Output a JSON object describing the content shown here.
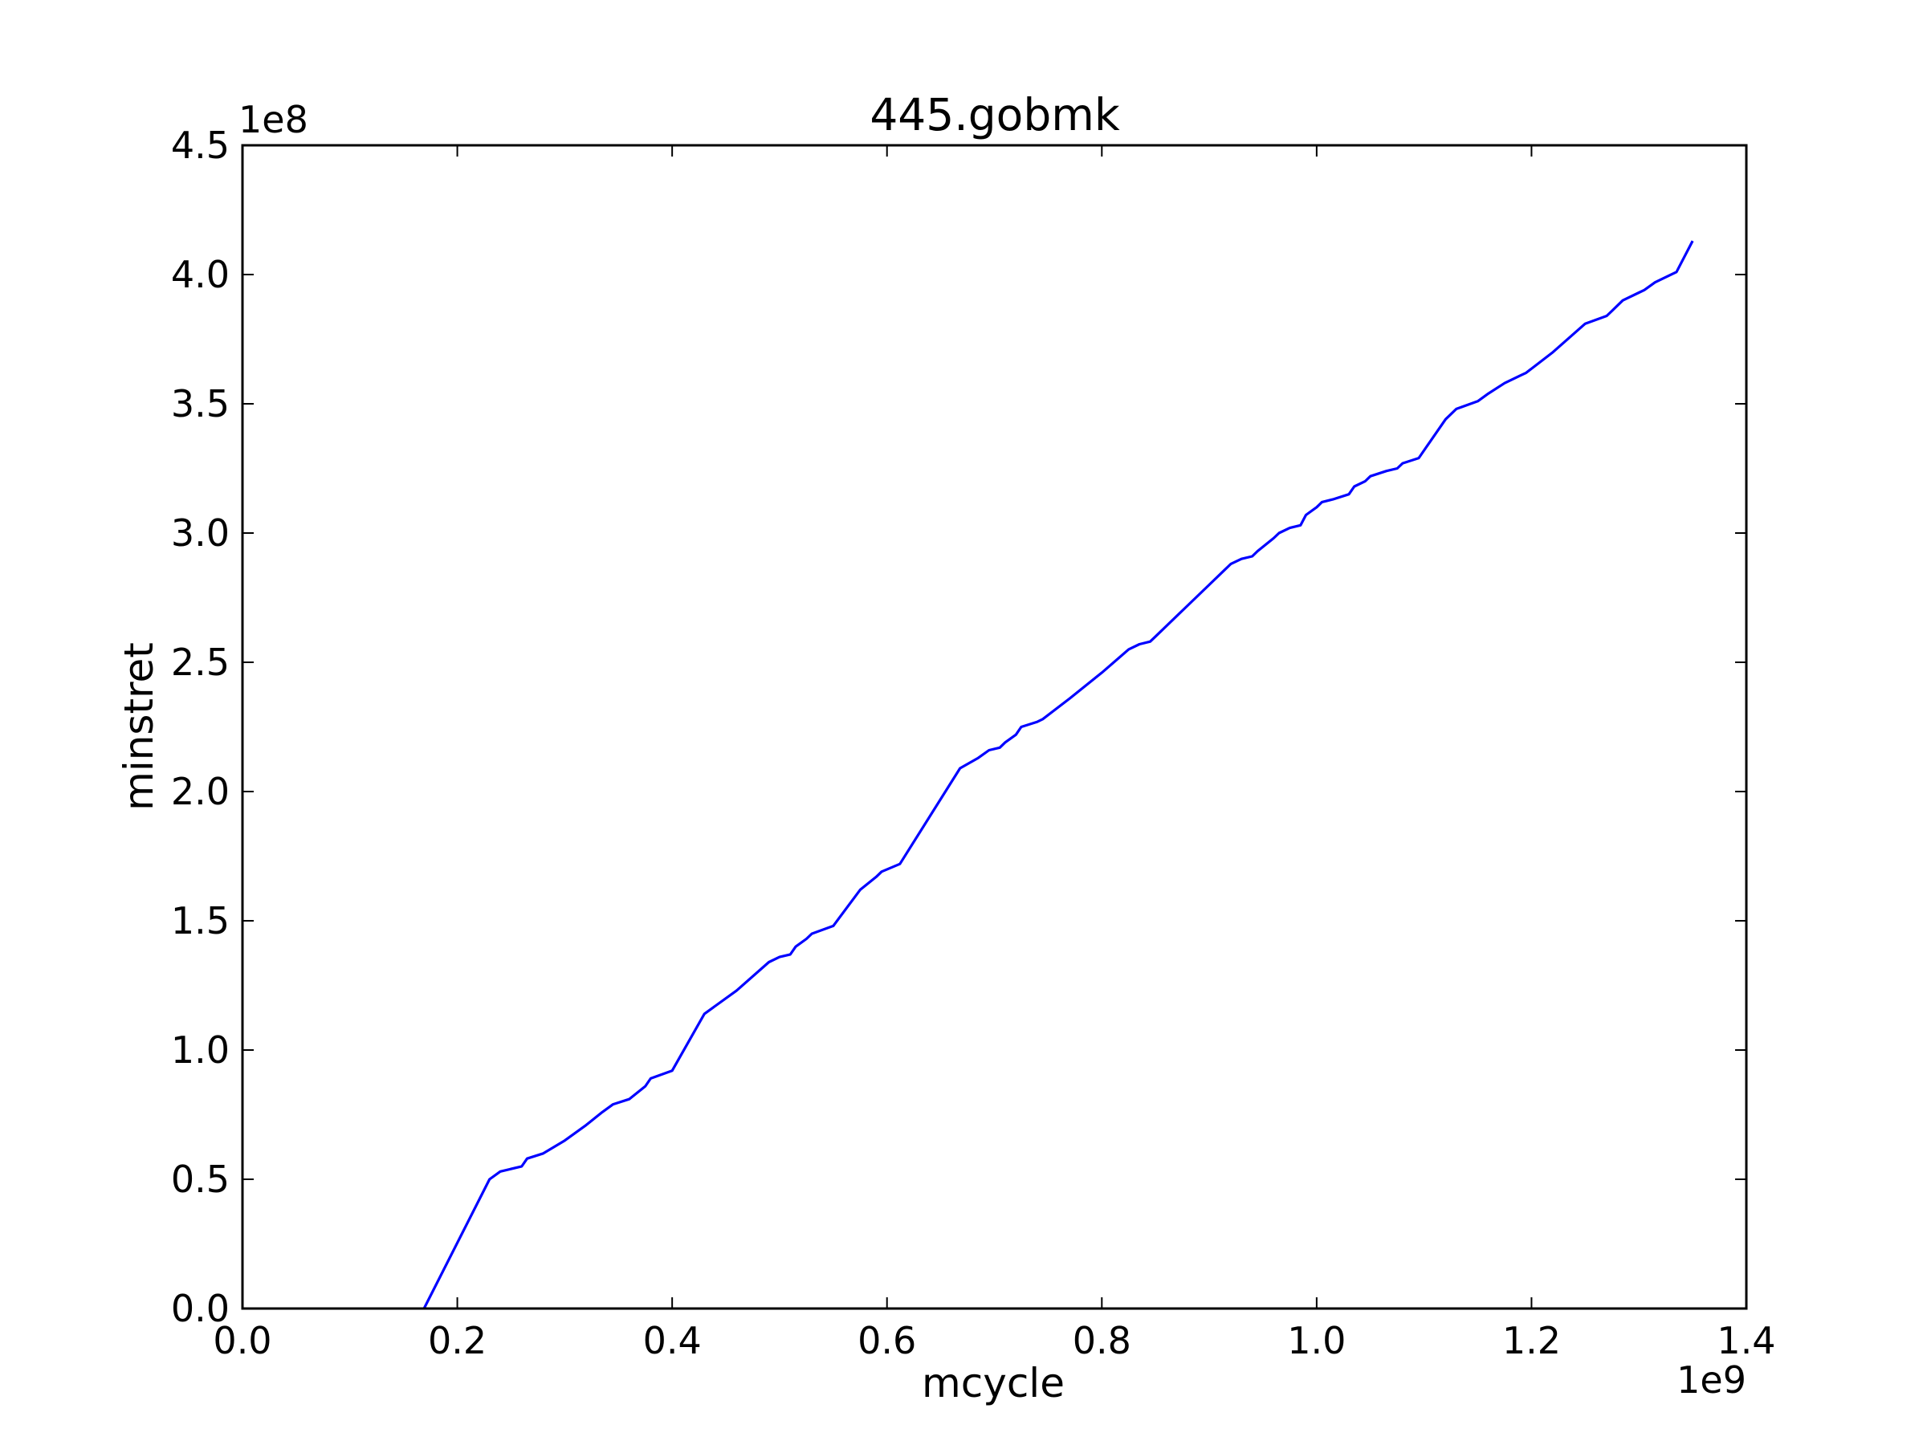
{
  "chart_data": {
    "type": "line",
    "title": "445.gobmk",
    "xlabel": "mcycle",
    "ylabel": "minstret",
    "x_offset_label": "1e9",
    "y_offset_label": "1e8",
    "xlim": [
      0.0,
      1.4
    ],
    "ylim": [
      0.0,
      4.5
    ],
    "x_ticks": [
      0.0,
      0.2,
      0.4,
      0.6,
      0.8,
      1.0,
      1.2,
      1.4
    ],
    "y_ticks": [
      0.0,
      0.5,
      1.0,
      1.5,
      2.0,
      2.5,
      3.0,
      3.5,
      4.0,
      4.5
    ],
    "x_tick_labels": [
      "0.0",
      "0.2",
      "0.4",
      "0.6",
      "0.8",
      "1.0",
      "1.2",
      "1.4"
    ],
    "y_tick_labels": [
      "0.0",
      "0.5",
      "1.0",
      "1.5",
      "2.0",
      "2.5",
      "3.0",
      "3.5",
      "4.0",
      "4.5"
    ],
    "grid": false,
    "line_color": "#0000ff",
    "series": [
      {
        "x": [
          0.169,
          0.23,
          0.24,
          0.26,
          0.265,
          0.28,
          0.3,
          0.32,
          0.335,
          0.345,
          0.36,
          0.375,
          0.38,
          0.4,
          0.43,
          0.46,
          0.49,
          0.5,
          0.51,
          0.515,
          0.525,
          0.53,
          0.55,
          0.575,
          0.59,
          0.595,
          0.612,
          0.668,
          0.685,
          0.695,
          0.705,
          0.71,
          0.72,
          0.725,
          0.74,
          0.745,
          0.77,
          0.8,
          0.825,
          0.835,
          0.845,
          0.85,
          0.875,
          0.9,
          0.92,
          0.93,
          0.94,
          0.945,
          0.96,
          0.965,
          0.975,
          0.985,
          0.99,
          1.0,
          1.005,
          1.015,
          1.03,
          1.035,
          1.045,
          1.05,
          1.065,
          1.075,
          1.08,
          1.095,
          1.12,
          1.13,
          1.15,
          1.16,
          1.175,
          1.19,
          1.195,
          1.22,
          1.25,
          1.27,
          1.275,
          1.285,
          1.3,
          1.305,
          1.315,
          1.32,
          1.335,
          1.35
        ],
        "y": [
          0.0,
          0.5,
          0.53,
          0.55,
          0.58,
          0.6,
          0.65,
          0.71,
          0.76,
          0.79,
          0.81,
          0.86,
          0.89,
          0.92,
          1.14,
          1.23,
          1.34,
          1.36,
          1.37,
          1.4,
          1.43,
          1.45,
          1.48,
          1.62,
          1.67,
          1.69,
          1.72,
          2.09,
          2.13,
          2.16,
          2.17,
          2.19,
          2.22,
          2.25,
          2.27,
          2.28,
          2.36,
          2.46,
          2.55,
          2.57,
          2.58,
          2.6,
          2.7,
          2.8,
          2.88,
          2.9,
          2.91,
          2.93,
          2.98,
          3.0,
          3.02,
          3.03,
          3.07,
          3.1,
          3.12,
          3.13,
          3.15,
          3.18,
          3.2,
          3.22,
          3.24,
          3.25,
          3.27,
          3.29,
          3.44,
          3.48,
          3.51,
          3.54,
          3.58,
          3.61,
          3.62,
          3.7,
          3.81,
          3.84,
          3.86,
          3.9,
          3.93,
          3.94,
          3.97,
          3.98,
          4.01,
          4.13
        ]
      }
    ]
  }
}
